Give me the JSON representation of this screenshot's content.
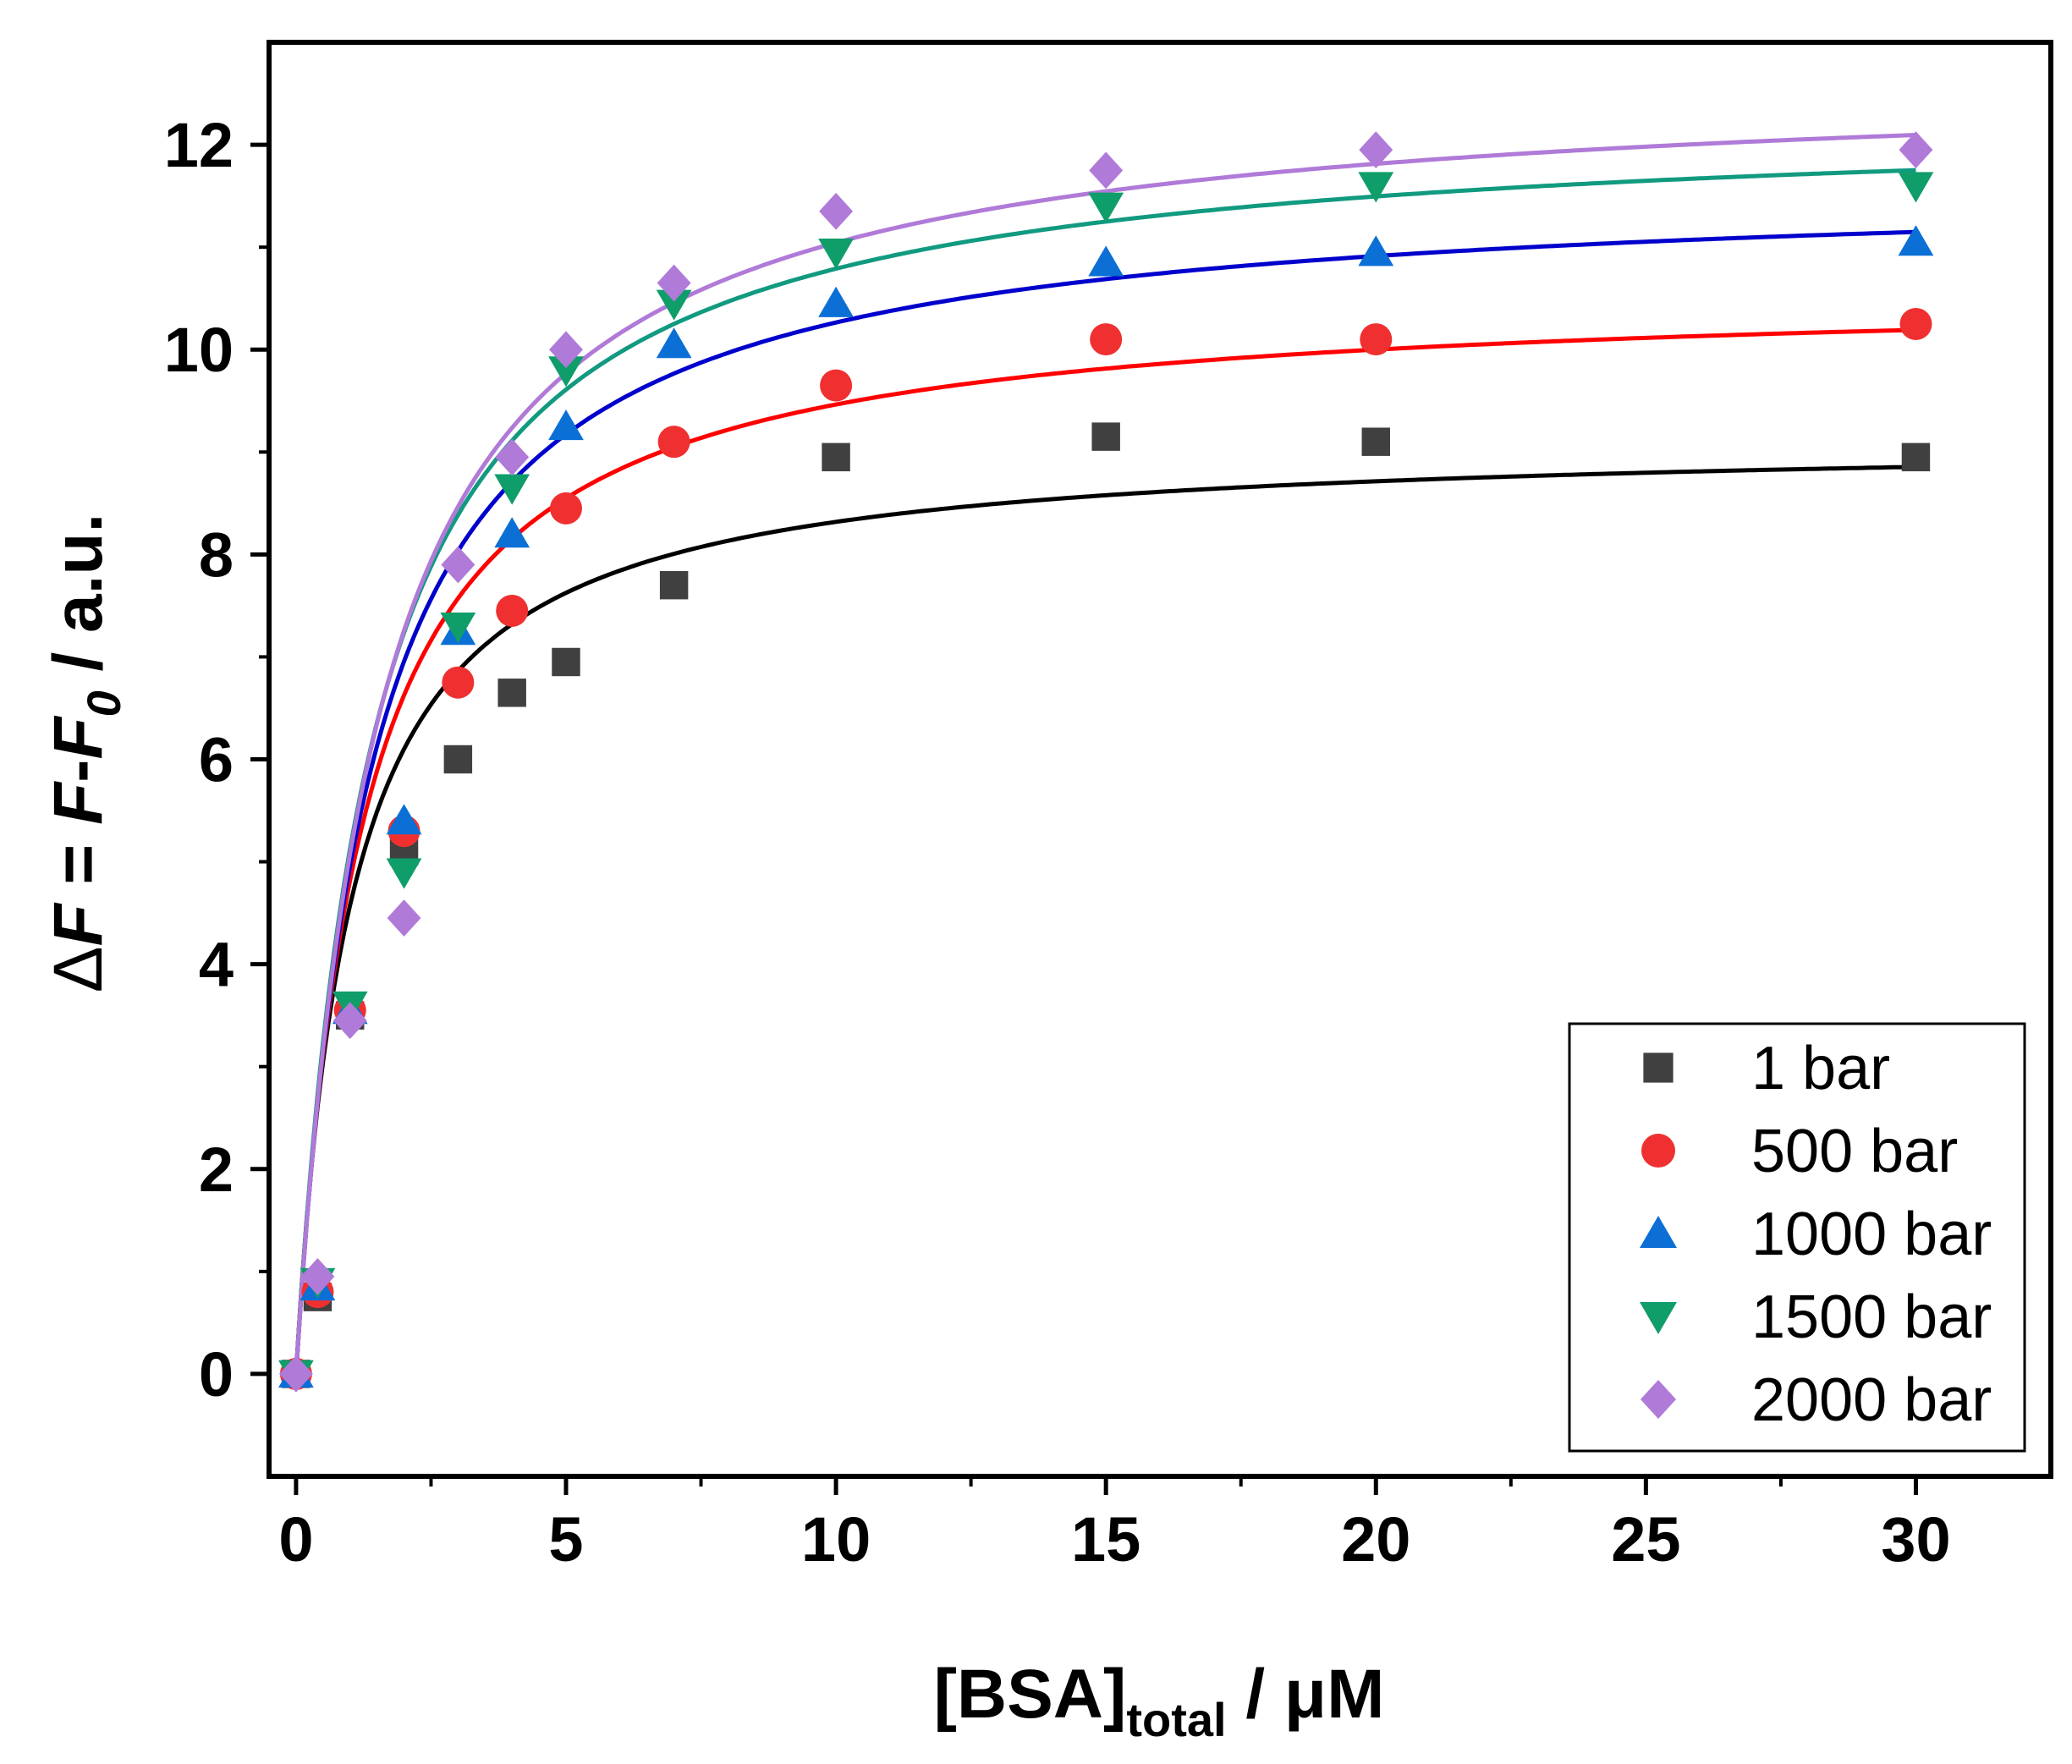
{
  "chart_data": {
    "type": "scatter",
    "title": "",
    "xlabel": {
      "main": "[BSA]",
      "sub": "total",
      "rest": " / μM"
    },
    "ylabel": {
      "delta": "Δ",
      "f": "F",
      "eq": " = ",
      "f2": "F",
      "dash": "-",
      "f0": "F",
      "sub0": "0",
      "rest": " / a.u."
    },
    "xlim": [
      -0.5,
      32.5
    ],
    "ylim": [
      -1.0,
      13.0
    ],
    "xticks": [
      0,
      5,
      10,
      15,
      20,
      25,
      30
    ],
    "yticks": [
      0,
      2,
      4,
      6,
      8,
      10,
      12
    ],
    "xticks_minor": [
      2.5,
      7.5,
      12.5,
      17.5,
      22.5,
      27.5
    ],
    "yticks_minor": [
      1,
      3,
      5,
      7,
      9,
      11
    ],
    "legend_position": "bottom-right",
    "x": [
      0,
      0.4,
      1,
      2,
      3,
      4,
      5,
      7,
      10,
      15,
      20,
      30
    ],
    "series": [
      {
        "name": "1 bar",
        "marker": "square",
        "color": "#404040",
        "fit_color": "#000000",
        "values": [
          0,
          0.75,
          3.5,
          5.1,
          6.0,
          6.65,
          6.95,
          7.7,
          8.95,
          9.15,
          9.1,
          8.95
        ],
        "fit": {
          "bmax": 9.15,
          "kd": 1.0
        }
      },
      {
        "name": "500 bar",
        "marker": "circle",
        "color": "#f03030",
        "fit_color": "#ff0000",
        "values": [
          0,
          0.8,
          3.55,
          5.3,
          6.75,
          7.45,
          8.45,
          9.1,
          9.65,
          10.1,
          10.1,
          10.25
        ],
        "fit": {
          "bmax": 10.6,
          "kd": 1.2
        }
      },
      {
        "name": "1000 bar",
        "marker": "triangle-up",
        "color": "#0b6fd6",
        "fit_color": "#0000cc",
        "values": [
          0,
          0.85,
          3.55,
          5.4,
          7.25,
          8.2,
          9.25,
          10.05,
          10.45,
          10.85,
          10.95,
          11.05
        ],
        "fit": {
          "bmax": 11.65,
          "kd": 1.35
        }
      },
      {
        "name": "1500 bar",
        "marker": "triangle-down",
        "color": "#0f9d6a",
        "fit_color": "#119a80",
        "values": [
          0,
          0.9,
          3.6,
          4.9,
          7.3,
          8.65,
          9.8,
          10.45,
          10.95,
          11.4,
          11.6,
          11.6
        ],
        "fit": {
          "bmax": 12.3,
          "kd": 1.4
        }
      },
      {
        "name": "2000 bar",
        "marker": "diamond",
        "color": "#b07ad8",
        "fit_color": "#b07ad8",
        "values": [
          0,
          0.95,
          3.45,
          4.45,
          7.9,
          8.95,
          10.0,
          10.65,
          11.35,
          11.75,
          11.95,
          11.95
        ],
        "fit": {
          "bmax": 12.7,
          "kd": 1.5
        }
      }
    ]
  }
}
